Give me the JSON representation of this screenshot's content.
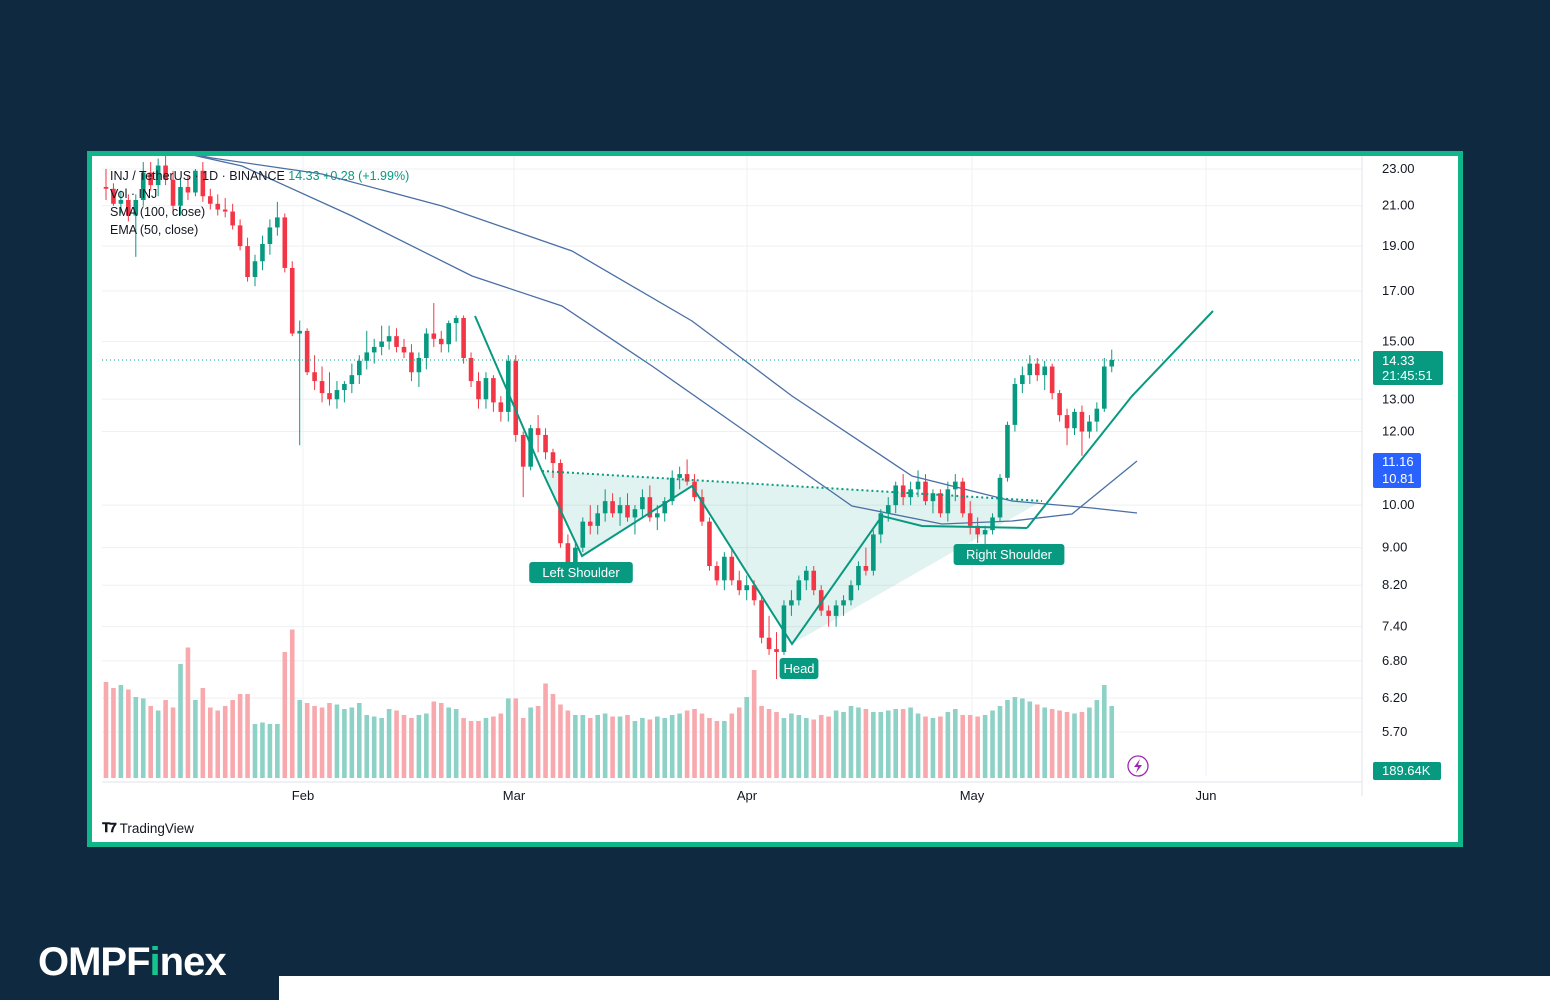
{
  "legend": {
    "symbol": "INJ / TetherUS · 1D · BINANCE",
    "price": "14.33",
    "change": "+0.28 (+1.99%)",
    "volume": "Vol · INJ",
    "sma": "SMA (100, close)",
    "ema": "EMA (50, close)"
  },
  "branding": {
    "watermark": "TradingView",
    "logo_prefix": "OMPF",
    "logo_accent": "i",
    "logo_suffix": "nex"
  },
  "colors": {
    "frame": "#10b58a",
    "background": "#0f2a40",
    "up": "#089981",
    "down": "#f23645",
    "ma": "#4a6fa5"
  },
  "chart_data": {
    "type": "candlestick",
    "title": "INJ / TetherUS · 1D · BINANCE",
    "y_ticks": [
      "23.00",
      "21.00",
      "19.00",
      "17.00",
      "15.00",
      "13.00",
      "12.00",
      "10.00",
      "9.00",
      "8.20",
      "7.40",
      "6.80",
      "6.20",
      "5.70"
    ],
    "x_ticks": [
      "Feb",
      "Mar",
      "Apr",
      "May",
      "Jun"
    ],
    "y_scale": "log",
    "last_price_label": "14.33",
    "countdown_label": "21:45:51",
    "ma_labels": [
      "11.16",
      "10.81"
    ],
    "volume_label": "189.64K",
    "annotations": [
      "Left Shoulder",
      "Head",
      "Right Shoulder"
    ],
    "candles": [
      [
        22.0,
        23.0,
        21.3,
        21.9
      ],
      [
        21.9,
        22.2,
        21.0,
        21.1
      ],
      [
        21.1,
        21.8,
        20.6,
        21.3
      ],
      [
        21.3,
        21.6,
        20.2,
        20.5
      ],
      [
        20.5,
        21.6,
        18.5,
        21.3
      ],
      [
        21.3,
        23.4,
        21.0,
        22.8
      ],
      [
        22.8,
        23.4,
        21.8,
        22.1
      ],
      [
        22.1,
        23.6,
        21.5,
        23.2
      ],
      [
        23.2,
        23.8,
        22.1,
        22.4
      ],
      [
        22.4,
        22.9,
        20.6,
        21.0
      ],
      [
        21.0,
        22.5,
        20.5,
        22.0
      ],
      [
        22.0,
        22.6,
        21.3,
        21.7
      ],
      [
        21.7,
        23.0,
        21.5,
        22.9
      ],
      [
        22.9,
        23.4,
        21.2,
        21.5
      ],
      [
        21.5,
        21.9,
        20.8,
        21.1
      ],
      [
        21.1,
        21.6,
        20.5,
        20.8
      ],
      [
        20.8,
        21.4,
        20.4,
        20.7
      ],
      [
        20.7,
        21.1,
        19.8,
        20.0
      ],
      [
        20.0,
        20.3,
        18.8,
        19.0
      ],
      [
        19.0,
        19.4,
        17.4,
        17.6
      ],
      [
        17.6,
        18.6,
        17.2,
        18.3
      ],
      [
        18.3,
        19.5,
        17.9,
        19.1
      ],
      [
        19.1,
        20.3,
        18.6,
        19.9
      ],
      [
        19.9,
        21.2,
        19.5,
        20.4
      ],
      [
        20.4,
        20.6,
        17.8,
        18.0
      ],
      [
        18.0,
        18.3,
        15.2,
        15.3
      ],
      [
        15.3,
        15.8,
        11.6,
        15.4
      ],
      [
        15.4,
        15.5,
        13.8,
        13.9
      ],
      [
        13.9,
        14.5,
        13.3,
        13.6
      ],
      [
        13.6,
        14.1,
        12.9,
        13.2
      ],
      [
        13.2,
        13.9,
        12.8,
        13.0
      ],
      [
        13.0,
        13.6,
        12.7,
        13.3
      ],
      [
        13.3,
        13.6,
        12.9,
        13.5
      ],
      [
        13.5,
        14.2,
        13.2,
        13.8
      ],
      [
        13.8,
        14.5,
        13.5,
        14.3
      ],
      [
        14.3,
        15.4,
        14.0,
        14.6
      ],
      [
        14.6,
        15.1,
        14.2,
        14.8
      ],
      [
        14.8,
        15.6,
        14.5,
        15.0
      ],
      [
        15.0,
        15.6,
        14.7,
        15.2
      ],
      [
        15.2,
        15.5,
        14.6,
        14.8
      ],
      [
        14.8,
        15.1,
        14.4,
        14.6
      ],
      [
        14.6,
        14.9,
        13.6,
        13.9
      ],
      [
        13.9,
        14.6,
        13.4,
        14.4
      ],
      [
        14.4,
        15.5,
        14.0,
        15.3
      ],
      [
        15.3,
        16.5,
        14.8,
        15.1
      ],
      [
        15.1,
        15.4,
        14.6,
        14.9
      ],
      [
        14.9,
        15.8,
        14.6,
        15.7
      ],
      [
        15.7,
        16.0,
        15.0,
        15.9
      ],
      [
        15.9,
        16.0,
        14.2,
        14.4
      ],
      [
        14.4,
        14.6,
        13.4,
        13.6
      ],
      [
        13.6,
        13.9,
        12.7,
        13.0
      ],
      [
        13.0,
        13.9,
        12.7,
        13.7
      ],
      [
        13.7,
        13.8,
        12.6,
        12.9
      ],
      [
        12.9,
        13.1,
        12.3,
        12.6
      ],
      [
        12.6,
        14.5,
        12.3,
        14.3
      ],
      [
        14.3,
        14.5,
        11.7,
        11.9
      ],
      [
        11.9,
        12.0,
        10.2,
        11.0
      ],
      [
        11.0,
        12.2,
        10.9,
        12.1
      ],
      [
        12.1,
        12.5,
        11.4,
        11.9
      ],
      [
        11.9,
        12.1,
        11.2,
        11.4
      ],
      [
        11.4,
        11.5,
        10.7,
        11.1
      ],
      [
        11.1,
        11.2,
        9.0,
        9.1
      ],
      [
        9.1,
        9.3,
        8.5,
        8.6
      ],
      [
        8.6,
        9.1,
        8.5,
        9.0
      ],
      [
        9.0,
        9.7,
        8.9,
        9.6
      ],
      [
        9.6,
        10.0,
        9.3,
        9.5
      ],
      [
        9.5,
        10.0,
        9.3,
        9.8
      ],
      [
        9.8,
        10.4,
        9.6,
        10.1
      ],
      [
        10.1,
        10.3,
        9.7,
        9.8
      ],
      [
        9.8,
        10.2,
        9.5,
        10.0
      ],
      [
        10.0,
        10.3,
        9.6,
        9.7
      ],
      [
        9.7,
        10.0,
        9.3,
        9.9
      ],
      [
        9.9,
        10.4,
        9.7,
        10.2
      ],
      [
        10.2,
        10.5,
        9.6,
        9.7
      ],
      [
        9.7,
        10.0,
        9.4,
        9.8
      ],
      [
        9.8,
        10.2,
        9.6,
        10.1
      ],
      [
        10.1,
        10.9,
        10.0,
        10.7
      ],
      [
        10.7,
        11.0,
        10.4,
        10.8
      ],
      [
        10.8,
        11.2,
        10.5,
        10.6
      ],
      [
        10.6,
        10.8,
        10.1,
        10.2
      ],
      [
        10.2,
        10.4,
        9.5,
        9.6
      ],
      [
        9.6,
        9.7,
        8.5,
        8.6
      ],
      [
        8.6,
        8.7,
        8.2,
        8.3
      ],
      [
        8.3,
        8.9,
        8.1,
        8.8
      ],
      [
        8.8,
        9.0,
        8.2,
        8.3
      ],
      [
        8.3,
        8.5,
        8.0,
        8.1
      ],
      [
        8.1,
        8.4,
        7.9,
        8.2
      ],
      [
        8.2,
        8.3,
        7.8,
        7.9
      ],
      [
        7.9,
        8.0,
        7.1,
        7.2
      ],
      [
        7.2,
        7.6,
        6.9,
        7.0
      ],
      [
        7.0,
        7.3,
        6.5,
        6.95
      ],
      [
        6.95,
        7.9,
        6.9,
        7.8
      ],
      [
        7.8,
        8.1,
        7.6,
        7.9
      ],
      [
        7.9,
        8.4,
        7.8,
        8.3
      ],
      [
        8.3,
        8.6,
        8.1,
        8.5
      ],
      [
        8.5,
        8.6,
        8.0,
        8.1
      ],
      [
        8.1,
        8.2,
        7.6,
        7.7
      ],
      [
        7.7,
        7.8,
        7.4,
        7.6
      ],
      [
        7.6,
        7.9,
        7.4,
        7.8
      ],
      [
        7.8,
        8.0,
        7.6,
        7.9
      ],
      [
        7.9,
        8.3,
        7.8,
        8.2
      ],
      [
        8.2,
        8.7,
        8.1,
        8.6
      ],
      [
        8.6,
        9.0,
        8.4,
        8.5
      ],
      [
        8.5,
        9.4,
        8.4,
        9.3
      ],
      [
        9.3,
        9.9,
        9.1,
        9.8
      ],
      [
        9.8,
        10.2,
        9.6,
        10.0
      ],
      [
        10.0,
        10.6,
        9.8,
        10.5
      ],
      [
        10.5,
        10.8,
        10.0,
        10.2
      ],
      [
        10.2,
        10.6,
        10.0,
        10.4
      ],
      [
        10.4,
        10.9,
        10.2,
        10.6
      ],
      [
        10.6,
        10.8,
        10.0,
        10.1
      ],
      [
        10.1,
        10.4,
        9.8,
        10.3
      ],
      [
        10.3,
        10.4,
        9.7,
        9.8
      ],
      [
        9.8,
        10.6,
        9.6,
        10.4
      ],
      [
        10.4,
        10.8,
        10.1,
        10.6
      ],
      [
        10.6,
        10.7,
        9.7,
        9.8
      ],
      [
        9.8,
        10.1,
        9.3,
        9.5
      ],
      [
        9.5,
        9.7,
        9.1,
        9.3
      ],
      [
        9.3,
        9.5,
        9.0,
        9.4
      ],
      [
        9.4,
        9.8,
        9.3,
        9.7
      ],
      [
        9.7,
        10.8,
        9.6,
        10.7
      ],
      [
        10.7,
        12.3,
        10.6,
        12.2
      ],
      [
        12.2,
        13.7,
        12.0,
        13.5
      ],
      [
        13.5,
        14.1,
        13.2,
        13.8
      ],
      [
        13.8,
        14.5,
        13.5,
        14.2
      ],
      [
        14.2,
        14.4,
        13.6,
        13.8
      ],
      [
        13.8,
        14.3,
        13.3,
        14.1
      ],
      [
        14.1,
        14.2,
        13.0,
        13.2
      ],
      [
        13.2,
        13.3,
        12.3,
        12.5
      ],
      [
        12.5,
        12.7,
        11.6,
        12.1
      ],
      [
        12.1,
        12.7,
        11.9,
        12.6
      ],
      [
        12.6,
        12.8,
        11.3,
        12.0
      ],
      [
        12.0,
        12.5,
        11.8,
        12.3
      ],
      [
        12.3,
        12.9,
        12.0,
        12.7
      ],
      [
        12.7,
        14.4,
        12.6,
        14.1
      ],
      [
        14.1,
        14.7,
        13.9,
        14.33
      ]
    ],
    "volume": [
      640,
      600,
      620,
      590,
      540,
      530,
      480,
      450,
      520,
      470,
      760,
      870,
      520,
      600,
      470,
      450,
      480,
      520,
      560,
      560,
      360,
      370,
      360,
      360,
      840,
      990,
      520,
      500,
      480,
      470,
      500,
      490,
      460,
      470,
      500,
      420,
      410,
      400,
      460,
      450,
      420,
      400,
      420,
      430,
      510,
      500,
      470,
      460,
      400,
      380,
      380,
      400,
      410,
      430,
      530,
      530,
      400,
      470,
      480,
      630,
      560,
      490,
      450,
      420,
      420,
      400,
      420,
      430,
      410,
      410,
      420,
      380,
      400,
      390,
      410,
      400,
      420,
      430,
      450,
      460,
      430,
      400,
      380,
      380,
      430,
      470,
      540,
      720,
      480,
      460,
      440,
      400,
      430,
      420,
      400,
      390,
      420,
      410,
      450,
      440,
      480,
      470,
      460,
      440,
      440,
      450,
      460,
      460,
      470,
      430,
      410,
      400,
      410,
      440,
      460,
      420,
      420,
      410,
      420,
      450,
      480,
      520,
      540,
      530,
      510,
      490,
      470,
      460,
      450,
      440,
      430,
      440,
      470,
      520,
      620,
      480
    ],
    "overlays": [
      "SMA (100, close)",
      "EMA (50, close)"
    ]
  }
}
